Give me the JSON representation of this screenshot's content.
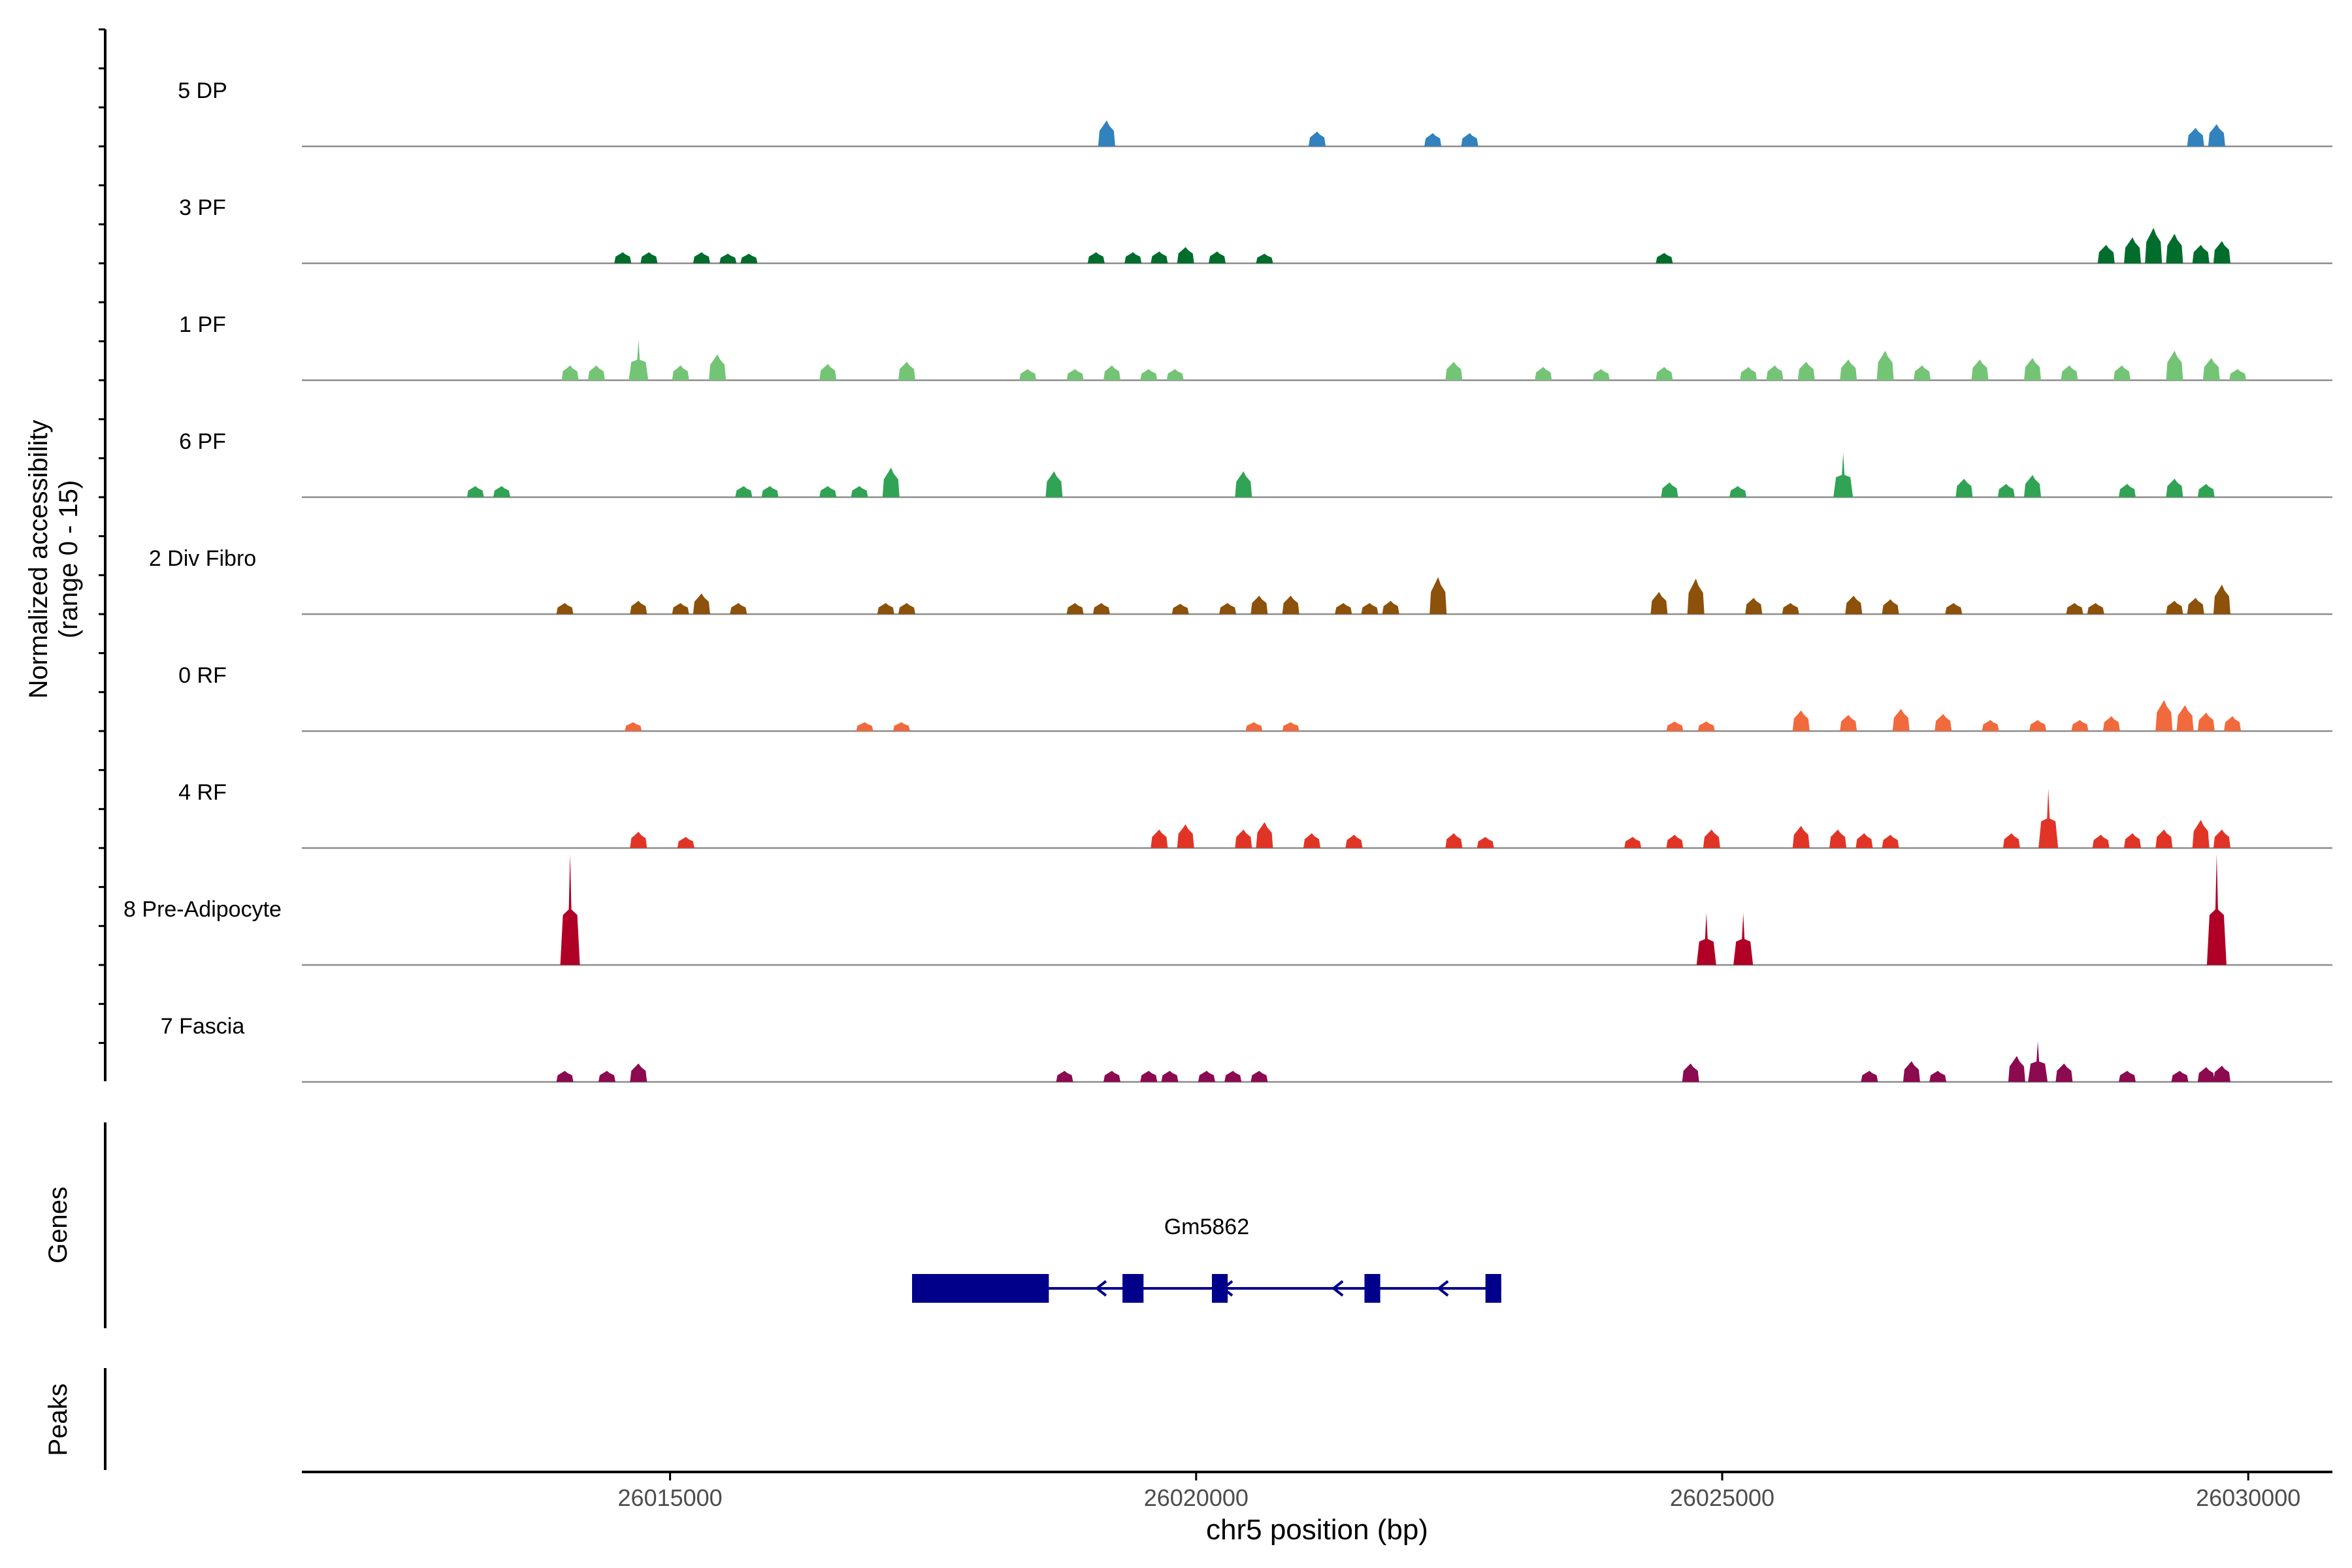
{
  "chart_data": {
    "type": "area",
    "ylabel": "Normalized accessibility",
    "ylabel_range": "(range 0 - 15)",
    "xlabel": "chr5 position (bp)",
    "ylim": [
      0,
      15
    ],
    "xlim": [
      26011500,
      26030800
    ],
    "x_ticks": [
      {
        "value": 26015000,
        "label": "26015000"
      },
      {
        "value": 26020000,
        "label": "26020000"
      },
      {
        "value": 26025000,
        "label": "26025000"
      },
      {
        "value": 26030000,
        "label": "26030000"
      }
    ],
    "series": [
      {
        "name": "5 DP",
        "color": "#3182bd",
        "peaks": [
          [
            26019150,
            3.5
          ],
          [
            26021150,
            2
          ],
          [
            26022250,
            1.8
          ],
          [
            26022600,
            1.8
          ],
          [
            26029500,
            2.5
          ],
          [
            26029700,
            3
          ]
        ]
      },
      {
        "name": "3 PF",
        "color": "#006d2c",
        "peaks": [
          [
            26014550,
            1.5
          ],
          [
            26014800,
            1.5
          ],
          [
            26015300,
            1.5
          ],
          [
            26015550,
            1.3
          ],
          [
            26015750,
            1.3
          ],
          [
            26019050,
            1.5
          ],
          [
            26019400,
            1.5
          ],
          [
            26019650,
            1.6
          ],
          [
            26019900,
            2.2
          ],
          [
            26020200,
            1.6
          ],
          [
            26020650,
            1.3
          ],
          [
            26024450,
            1.4
          ],
          [
            26028650,
            2.5
          ],
          [
            26028900,
            3.5
          ],
          [
            26029100,
            4.8
          ],
          [
            26029300,
            4
          ],
          [
            26029550,
            2.5
          ],
          [
            26029750,
            3
          ]
        ]
      },
      {
        "name": "1 PF",
        "color": "#74c476",
        "peaks": [
          [
            26014050,
            2
          ],
          [
            26014300,
            2
          ],
          [
            26014700,
            5.5
          ],
          [
            26015100,
            2
          ],
          [
            26015450,
            3.5
          ],
          [
            26016500,
            2.2
          ],
          [
            26017250,
            2.5
          ],
          [
            26018400,
            1.5
          ],
          [
            26018850,
            1.5
          ],
          [
            26019200,
            2
          ],
          [
            26019550,
            1.5
          ],
          [
            26019800,
            1.5
          ],
          [
            26022450,
            2.5
          ],
          [
            26023300,
            1.8
          ],
          [
            26023850,
            1.5
          ],
          [
            26024450,
            1.8
          ],
          [
            26025250,
            1.8
          ],
          [
            26025500,
            2
          ],
          [
            26025800,
            2.5
          ],
          [
            26026200,
            2.8
          ],
          [
            26026550,
            4
          ],
          [
            26026900,
            2
          ],
          [
            26027450,
            2.8
          ],
          [
            26027950,
            3
          ],
          [
            26028300,
            2
          ],
          [
            26028800,
            2
          ],
          [
            26029300,
            4
          ],
          [
            26029650,
            3
          ],
          [
            26029900,
            1.5
          ]
        ]
      },
      {
        "name": "6 PF",
        "color": "#31a354",
        "peaks": [
          [
            26013150,
            1.5
          ],
          [
            26013400,
            1.5
          ],
          [
            26015700,
            1.5
          ],
          [
            26015950,
            1.5
          ],
          [
            26016500,
            1.5
          ],
          [
            26016800,
            1.5
          ],
          [
            26017100,
            4
          ],
          [
            26018650,
            3.5
          ],
          [
            26020450,
            3.5
          ],
          [
            26024500,
            2
          ],
          [
            26025150,
            1.5
          ],
          [
            26026150,
            6
          ],
          [
            26027300,
            2.5
          ],
          [
            26027700,
            1.8
          ],
          [
            26027950,
            3
          ],
          [
            26028850,
            1.8
          ],
          [
            26029300,
            2.5
          ],
          [
            26029600,
            1.8
          ]
        ]
      },
      {
        "name": "2 Div Fibro",
        "color": "#8c510a",
        "peaks": [
          [
            26014000,
            1.5
          ],
          [
            26014700,
            1.8
          ],
          [
            26015100,
            1.5
          ],
          [
            26015300,
            2.8
          ],
          [
            26015650,
            1.5
          ],
          [
            26017050,
            1.5
          ],
          [
            26017250,
            1.5
          ],
          [
            26018850,
            1.5
          ],
          [
            26019100,
            1.5
          ],
          [
            26019850,
            1.4
          ],
          [
            26020300,
            1.5
          ],
          [
            26020600,
            2.5
          ],
          [
            26020900,
            2.5
          ],
          [
            26021400,
            1.5
          ],
          [
            26021650,
            1.5
          ],
          [
            26021850,
            1.8
          ],
          [
            26022300,
            5
          ],
          [
            26024400,
            3
          ],
          [
            26024750,
            4.8
          ],
          [
            26025300,
            2.2
          ],
          [
            26025650,
            1.5
          ],
          [
            26026250,
            2.5
          ],
          [
            26026600,
            2
          ],
          [
            26027200,
            1.5
          ],
          [
            26028350,
            1.5
          ],
          [
            26028550,
            1.5
          ],
          [
            26029300,
            1.8
          ],
          [
            26029500,
            2.2
          ],
          [
            26029750,
            4
          ]
        ]
      },
      {
        "name": "0 RF",
        "color": "#f16a3e",
        "peaks": [
          [
            26014650,
            1.2
          ],
          [
            26016850,
            1.2
          ],
          [
            26017200,
            1.2
          ],
          [
            26020550,
            1.2
          ],
          [
            26020900,
            1.2
          ],
          [
            26024550,
            1.3
          ],
          [
            26024850,
            1.3
          ],
          [
            26025750,
            2.8
          ],
          [
            26026200,
            2.2
          ],
          [
            26026700,
            3
          ],
          [
            26027100,
            2.3
          ],
          [
            26027550,
            1.5
          ],
          [
            26028000,
            1.5
          ],
          [
            26028400,
            1.5
          ],
          [
            26028700,
            2
          ],
          [
            26029200,
            4.2
          ],
          [
            26029400,
            3.5
          ],
          [
            26029600,
            2.5
          ],
          [
            26029850,
            2
          ]
        ]
      },
      {
        "name": "4 RF",
        "color": "#e03526",
        "peaks": [
          [
            26014700,
            2.2
          ],
          [
            26015150,
            1.5
          ],
          [
            26019650,
            2.5
          ],
          [
            26019900,
            3.2
          ],
          [
            26020450,
            2.5
          ],
          [
            26020650,
            3.5
          ],
          [
            26021100,
            2
          ],
          [
            26021500,
            1.8
          ],
          [
            26022450,
            2
          ],
          [
            26022750,
            1.5
          ],
          [
            26024150,
            1.5
          ],
          [
            26024550,
            1.8
          ],
          [
            26024900,
            2.5
          ],
          [
            26025750,
            3
          ],
          [
            26026100,
            2.5
          ],
          [
            26026350,
            2
          ],
          [
            26026600,
            1.8
          ],
          [
            26027750,
            2
          ],
          [
            26028100,
            8
          ],
          [
            26028600,
            1.8
          ],
          [
            26028900,
            2
          ],
          [
            26029200,
            2.5
          ],
          [
            26029550,
            3.8
          ],
          [
            26029750,
            2.5
          ]
        ]
      },
      {
        "name": "8 Pre-Adipocyte",
        "color": "#b10026",
        "peaks": [
          [
            26014050,
            15
          ],
          [
            26024850,
            7
          ],
          [
            26025200,
            7
          ],
          [
            26029700,
            15
          ]
        ]
      },
      {
        "name": "7 Fascia",
        "color": "#8b0a50",
        "peaks": [
          [
            26014000,
            1.5
          ],
          [
            26014400,
            1.5
          ],
          [
            26014700,
            2.5
          ],
          [
            26018750,
            1.5
          ],
          [
            26019200,
            1.5
          ],
          [
            26019550,
            1.5
          ],
          [
            26019750,
            1.5
          ],
          [
            26020100,
            1.5
          ],
          [
            26020350,
            1.5
          ],
          [
            26020600,
            1.5
          ],
          [
            26024700,
            2.5
          ],
          [
            26026400,
            1.5
          ],
          [
            26026800,
            2.8
          ],
          [
            26027050,
            1.5
          ],
          [
            26027800,
            3.5
          ],
          [
            26028000,
            5.5
          ],
          [
            26028250,
            2.5
          ],
          [
            26028850,
            1.5
          ],
          [
            26029350,
            1.5
          ],
          [
            26029600,
            2
          ],
          [
            26029750,
            2.2
          ]
        ]
      }
    ],
    "genes": {
      "label": "Genes",
      "items": [
        {
          "name": "Gm5862",
          "strand": "-",
          "start": 26017300,
          "end": 26022900,
          "exons": [
            [
              26017300,
              26018600
            ],
            [
              26019300,
              26019500
            ],
            [
              26020150,
              26020300
            ],
            [
              26021600,
              26021750
            ],
            [
              26022750,
              26022900
            ]
          ],
          "arrows": [
            26019100,
            26020300,
            26021350,
            26022350
          ]
        }
      ]
    },
    "peaks_track": {
      "label": "Peaks",
      "regions": []
    }
  }
}
